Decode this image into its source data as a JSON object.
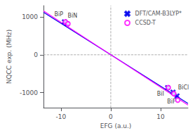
{
  "chart_data": {
    "type": "scatter",
    "xlabel": "EFG (a.u.)",
    "ylabel": "NQCC exp. (MHz)",
    "xlim": [
      -13.5,
      15.5
    ],
    "ylim": [
      -1400,
      1300
    ],
    "xticks": [
      -10,
      0,
      10
    ],
    "yticks": [
      -1000,
      0,
      1000
    ],
    "grid": false,
    "legend": "upper right",
    "series": [
      {
        "type": "line",
        "color": "#0000ee",
        "line_style": "solid",
        "x": [
          -13.5,
          15.5
        ],
        "values": [
          1121.652074,
          -1287.822751
        ]
      },
      {
        "type": "line",
        "color": "#ff00ff",
        "line_style": "solid",
        "x": [
          -13.5,
          15.5
        ],
        "values": [
          1159.130721,
          -1330.953791
        ]
      },
      {
        "name": "DFT/CAM-B3LYP*",
        "type": "scatter",
        "marker": "x",
        "color": "#0000ee",
        "x": [
          -9.3,
          -8.8,
          11.4,
          12.5,
          13.3
        ],
        "values": [
          870,
          820,
          -870,
          -990,
          -1090
        ]
      },
      {
        "name": "CCSD-T",
        "type": "scatter",
        "marker": "open_circle",
        "color": "#ff00ff",
        "x": [
          -9.1,
          -8.6,
          11.55,
          12.65,
          13.45
        ],
        "values": [
          870,
          820,
          -870,
          -1030,
          -1200
        ]
      },
      {
        "type": "line",
        "color": "#999999",
        "line_style": "dashed",
        "x": [
          -13.5,
          15.5
        ],
        "values": [
          0,
          0
        ]
      },
      {
        "type": "line",
        "color": "#999999",
        "line_style": "dashed",
        "x": [
          0,
          0
        ],
        "values": [
          -1400,
          1300
        ]
      }
    ],
    "annotations": [
      {
        "text": "BiP",
        "x": -9.3,
        "y": 870
      },
      {
        "text": "BiN",
        "x": -8.8,
        "y": 820
      },
      {
        "text": "BiI",
        "x": 11.4,
        "y": -870
      },
      {
        "text": "BiCl",
        "x": 12.5,
        "y": -990
      },
      {
        "text": "BiF",
        "x": 13.3,
        "y": -1090
      }
    ]
  }
}
